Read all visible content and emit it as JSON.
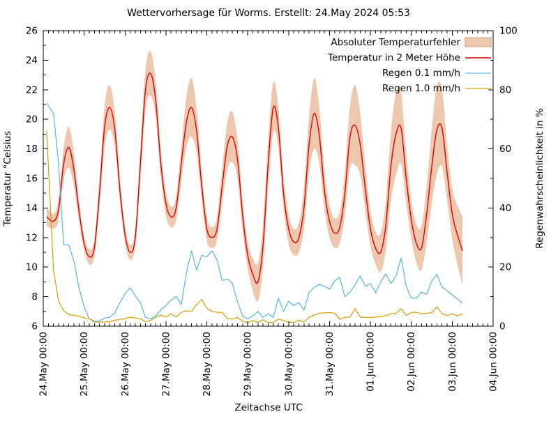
{
  "chart_data": {
    "type": "line",
    "title": "Wettervorhersage für Worms. Erstellt: 24.May 2024 05:53",
    "xlabel": "Zeitachse UTC",
    "ylabel": "Temperatur °Celsius",
    "y2label": "Regenwahrscheinlichkeit in %",
    "legend_position": "top-right-inside",
    "grid": false,
    "x_range_hours": [
      0,
      264
    ],
    "x_tick_step_hours": 24,
    "x_minor_step_hours": 3,
    "x_tick_labels": [
      "24.May 00:00",
      "25.May 00:00",
      "26.May 00:00",
      "27.May 00:00",
      "28.May 00:00",
      "29.May 00:00",
      "30.May 00:00",
      "31.May 00:00",
      "01.Jun 00:00",
      "02.Jun 00:00",
      "03.Jun 00:00",
      "04.Jun 00:00"
    ],
    "ylim": [
      6,
      26
    ],
    "y_ticks": [
      6,
      8,
      10,
      12,
      14,
      16,
      18,
      20,
      22,
      24,
      26
    ],
    "y_minor_step": 1,
    "y2lim": [
      0,
      100
    ],
    "y2_ticks": [
      0,
      20,
      40,
      60,
      80,
      100
    ],
    "y2_minor_step": 10,
    "x_hours": [
      2,
      6,
      9,
      12,
      15,
      18,
      21,
      24,
      27,
      30,
      33,
      36,
      39,
      42,
      45,
      48,
      51,
      54,
      57,
      60,
      63,
      66,
      69,
      72,
      75,
      78,
      81,
      84,
      87,
      90,
      93,
      96,
      99,
      102,
      105,
      108,
      111,
      114,
      117,
      120,
      123,
      126,
      129,
      132,
      135,
      138,
      141,
      144,
      147,
      150,
      153,
      156,
      159,
      162,
      165,
      168,
      171,
      174,
      177,
      180,
      183,
      186,
      189,
      192,
      195,
      198,
      201,
      204,
      207,
      210,
      213,
      216,
      219,
      222,
      225,
      228,
      231,
      234,
      237,
      240,
      243,
      246
    ],
    "series": [
      {
        "name": "Absoluter Temperaturfehler",
        "kind": "band",
        "axis": "y",
        "color": "#edc7ae",
        "error": [
          0.6,
          0.5,
          0.7,
          1.1,
          1.4,
          1.1,
          0.7,
          0.5,
          0.5,
          0.6,
          1.0,
          1.4,
          1.5,
          1.2,
          0.8,
          0.6,
          0.5,
          0.6,
          1.1,
          1.4,
          1.5,
          1.2,
          0.9,
          0.8,
          0.7,
          0.8,
          1.2,
          1.7,
          2.0,
          1.5,
          1.0,
          0.8,
          0.7,
          0.8,
          1.2,
          1.6,
          1.7,
          1.3,
          1.0,
          0.9,
          1.1,
          1.3,
          1.5,
          1.7,
          1.7,
          1.4,
          1.1,
          1.0,
          0.9,
          1.0,
          1.4,
          1.9,
          2.4,
          1.9,
          1.3,
          1.1,
          1.0,
          1.1,
          1.5,
          2.1,
          2.7,
          2.1,
          1.5,
          1.2,
          1.1,
          1.3,
          1.7,
          2.3,
          2.8,
          2.4,
          1.7,
          1.3,
          1.3,
          1.5,
          1.9,
          2.5,
          3.0,
          2.6,
          1.9,
          1.7,
          2.0,
          2.3
        ]
      },
      {
        "name": "Temperatur in 2 Meter Höhe",
        "kind": "line",
        "axis": "y",
        "color": "#dd0000",
        "values": [
          13.4,
          13.1,
          13.9,
          17.0,
          18.1,
          16.6,
          13.8,
          11.6,
          10.7,
          11.3,
          15.0,
          19.5,
          20.8,
          19.3,
          15.2,
          12.2,
          11.0,
          12.0,
          17.0,
          22.0,
          23.1,
          21.3,
          17.0,
          14.3,
          13.4,
          14.0,
          17.0,
          19.8,
          20.8,
          19.2,
          15.5,
          12.6,
          12.0,
          12.6,
          15.5,
          18.2,
          18.8,
          17.3,
          13.5,
          10.8,
          9.5,
          9.0,
          11.5,
          17.0,
          20.8,
          19.4,
          15.0,
          12.6,
          11.7,
          12.0,
          14.0,
          18.3,
          20.4,
          18.9,
          15.2,
          13.1,
          12.3,
          12.7,
          15.0,
          18.8,
          19.6,
          18.3,
          15.3,
          12.6,
          11.3,
          11.0,
          12.8,
          16.8,
          19.0,
          19.4,
          16.0,
          13.2,
          11.6,
          11.3,
          13.6,
          16.8,
          19.3,
          19.4,
          16.4,
          13.6,
          12.2,
          11.1
        ]
      },
      {
        "name": "Regen 0.1 mm/h",
        "kind": "line",
        "axis": "y2",
        "color": "#56b4e9",
        "values": [
          75.5,
          72,
          55,
          27.5,
          27.5,
          22,
          13,
          6.5,
          2.6,
          1.7,
          1.7,
          2.8,
          3.0,
          4.5,
          8,
          11,
          13,
          10.3,
          8,
          3,
          2.5,
          3.5,
          5.5,
          7,
          8.8,
          10.1,
          7.3,
          18,
          25.5,
          19,
          24,
          23.5,
          25.5,
          22.5,
          15.5,
          16,
          14.5,
          8.2,
          3.5,
          2.5,
          3.5,
          5,
          3,
          4.2,
          3,
          9.5,
          5,
          8.5,
          7,
          8,
          5.5,
          11.3,
          13.2,
          14.2,
          13.5,
          12.5,
          15.3,
          16.5,
          10,
          11.5,
          14,
          17,
          13.5,
          14.4,
          11.3,
          15,
          17.7,
          14.4,
          17,
          23,
          13.5,
          9.5,
          9.5,
          11.5,
          10.8,
          15.3,
          17.5,
          13.2,
          12,
          10.6,
          9.2,
          7.8
        ]
      },
      {
        "name": "Regen 1.0 mm/h",
        "kind": "line",
        "axis": "y2",
        "color": "#d69c00",
        "values": [
          66,
          19,
          8.5,
          5.2,
          4.0,
          3.6,
          3.4,
          2.8,
          2.6,
          1.4,
          1.4,
          1.4,
          1.5,
          2.0,
          2.3,
          2.6,
          3.1,
          2.8,
          2.6,
          1.5,
          2.0,
          3.0,
          3.8,
          3.1,
          4.2,
          3.1,
          4.7,
          5.2,
          5.0,
          7.3,
          9.0,
          6.1,
          5.0,
          4.7,
          4.7,
          2.6,
          2.4,
          3.0,
          1.6,
          1.2,
          2.0,
          1.2,
          2.2,
          1.2,
          1.3,
          2.4,
          1.9,
          1.4,
          1.2,
          2.0,
          1.4,
          3.0,
          3.8,
          4.4,
          4.5,
          4.6,
          4.4,
          2.4,
          3.0,
          3.1,
          5.9,
          3.1,
          3.0,
          3.0,
          3.1,
          3.3,
          3.6,
          4.2,
          4.4,
          5.9,
          3.6,
          4.7,
          4.7,
          4.2,
          4.4,
          4.5,
          6.6,
          4.2,
          3.6,
          4.2,
          3.5,
          4.2
        ]
      }
    ]
  }
}
